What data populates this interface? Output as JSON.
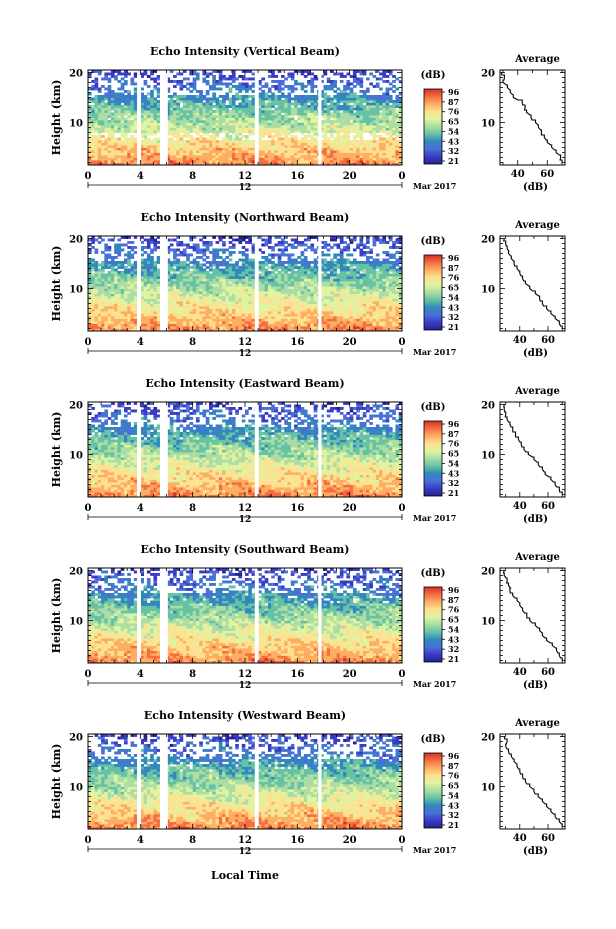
{
  "figure": {
    "xlabel": "Local Time",
    "date_label": "Mar 2017",
    "noon_label": "12"
  },
  "colorbar": {
    "unit": "(dB)",
    "ticks": [
      "96",
      "87",
      "76",
      "65",
      "54",
      "43",
      "32",
      "21"
    ],
    "colors": [
      "#d73027",
      "#f46d43",
      "#fdae61",
      "#fee090",
      "#e0f3a0",
      "#abdda4",
      "#66c2a5",
      "#3288bd",
      "#4a6fd8",
      "#3b3bc6",
      "#24248e"
    ]
  },
  "chart_data": [
    {
      "type": "heatmap",
      "title": "Echo Intensity (Vertical Beam)",
      "ylabel": "Height (km)",
      "xticks": [
        "0",
        "4",
        "8",
        "12",
        "16",
        "20",
        "0"
      ],
      "yticks": [
        "20",
        "10"
      ],
      "xlim": [
        0,
        24
      ],
      "ylim": [
        1.5,
        20.5
      ],
      "gaps_hours": [
        [
          3.75,
          4.05
        ],
        [
          5.5,
          6.1
        ],
        [
          12.75,
          13.05
        ],
        [
          17.6,
          17.85
        ]
      ],
      "profile": {
        "title": "Average",
        "xlabel": "(dB)",
        "xticks": [
          "40",
          "60"
        ],
        "yticks": [
          "20",
          "10"
        ],
        "xlim": [
          28,
          72
        ],
        "heights_km": [
          2,
          3,
          4,
          5,
          6,
          7,
          8,
          9,
          10,
          11,
          12,
          13,
          14,
          15,
          16,
          17,
          18,
          19,
          20
        ],
        "values_db": [
          70,
          69,
          66,
          63,
          60,
          58,
          56,
          54,
          52,
          49,
          46,
          45,
          43,
          37,
          35,
          33,
          30,
          31,
          29
        ]
      }
    },
    {
      "type": "heatmap",
      "title": "Echo Intensity (Northward Beam)",
      "ylabel": "Height (km)",
      "xticks": [
        "0",
        "4",
        "8",
        "12",
        "16",
        "20",
        "0"
      ],
      "yticks": [
        "20",
        "10"
      ],
      "xlim": [
        0,
        24
      ],
      "ylim": [
        1.5,
        20.5
      ],
      "gaps_hours": [
        [
          3.75,
          4.05
        ],
        [
          5.5,
          6.1
        ],
        [
          12.75,
          13.05
        ],
        [
          17.6,
          17.85
        ]
      ],
      "profile": {
        "title": "Average",
        "xlabel": "(dB)",
        "xticks": [
          "40",
          "60"
        ],
        "yticks": [
          "20",
          "10"
        ],
        "xlim": [
          26,
          72
        ],
        "heights_km": [
          2,
          3,
          4,
          5,
          6,
          7,
          8,
          9,
          10,
          11,
          12,
          13,
          14,
          15,
          16,
          17,
          18,
          19,
          20
        ],
        "values_db": [
          70,
          68,
          65,
          62,
          59,
          56,
          54,
          51,
          47,
          44,
          42,
          40,
          38,
          36,
          34,
          32,
          31,
          30,
          29
        ]
      }
    },
    {
      "type": "heatmap",
      "title": "Echo Intensity (Eastward Beam)",
      "ylabel": "Height (km)",
      "xticks": [
        "0",
        "4",
        "8",
        "12",
        "16",
        "20",
        "0"
      ],
      "yticks": [
        "20",
        "10"
      ],
      "xlim": [
        0,
        24
      ],
      "ylim": [
        1.5,
        20.5
      ],
      "gaps_hours": [
        [
          3.75,
          4.05
        ],
        [
          5.5,
          6.1
        ],
        [
          12.75,
          13.05
        ],
        [
          17.6,
          17.85
        ]
      ],
      "profile": {
        "title": "Average",
        "xlabel": "(dB)",
        "xticks": [
          "40",
          "60"
        ],
        "yticks": [
          "20",
          "10"
        ],
        "xlim": [
          26,
          72
        ],
        "heights_km": [
          2,
          3,
          4,
          5,
          6,
          7,
          8,
          9,
          10,
          11,
          12,
          13,
          14,
          15,
          16,
          17,
          18,
          19,
          20
        ],
        "values_db": [
          70,
          68,
          65,
          62,
          58,
          56,
          53,
          50,
          46,
          43,
          41,
          39,
          37,
          35,
          33,
          31,
          30,
          29,
          29
        ]
      }
    },
    {
      "type": "heatmap",
      "title": "Echo Intensity (Southward Beam)",
      "ylabel": "Height (km)",
      "xticks": [
        "0",
        "4",
        "8",
        "12",
        "16",
        "20",
        "0"
      ],
      "yticks": [
        "20",
        "10"
      ],
      "xlim": [
        0,
        24
      ],
      "ylim": [
        1.5,
        20.5
      ],
      "gaps_hours": [
        [
          3.75,
          4.05
        ],
        [
          5.5,
          6.1
        ],
        [
          12.75,
          13.05
        ],
        [
          17.6,
          17.85
        ]
      ],
      "profile": {
        "title": "Average",
        "xlabel": "(dB)",
        "xticks": [
          "40",
          "60"
        ],
        "yticks": [
          "20",
          "10"
        ],
        "xlim": [
          26,
          72
        ],
        "heights_km": [
          2,
          3,
          4,
          5,
          6,
          7,
          8,
          9,
          10,
          11,
          12,
          13,
          14,
          15,
          16,
          17,
          18,
          19,
          20
        ],
        "values_db": [
          70,
          68,
          66,
          63,
          59,
          56,
          54,
          51,
          47,
          45,
          42,
          40,
          38,
          35,
          33,
          32,
          31,
          29,
          29
        ]
      }
    },
    {
      "type": "heatmap",
      "title": "Echo Intensity (Westward Beam)",
      "ylabel": "Height (km)",
      "xticks": [
        "0",
        "4",
        "8",
        "12",
        "16",
        "20",
        "0"
      ],
      "yticks": [
        "20",
        "10"
      ],
      "xlim": [
        0,
        24
      ],
      "ylim": [
        1.5,
        20.5
      ],
      "gaps_hours": [
        [
          3.75,
          4.05
        ],
        [
          5.5,
          6.1
        ],
        [
          12.75,
          13.05
        ],
        [
          17.6,
          17.85
        ]
      ],
      "profile": {
        "title": "Average",
        "xlabel": "(dB)",
        "xticks": [
          "40",
          "60"
        ],
        "yticks": [
          "20",
          "10"
        ],
        "xlim": [
          26,
          72
        ],
        "heights_km": [
          2,
          3,
          4,
          5,
          6,
          7,
          8,
          9,
          10,
          11,
          12,
          13,
          14,
          15,
          16,
          17,
          18,
          19,
          20
        ],
        "values_db": [
          70,
          68,
          65,
          62,
          59,
          56,
          53,
          50,
          47,
          44,
          42,
          40,
          38,
          36,
          34,
          32,
          30,
          31,
          29
        ]
      }
    }
  ]
}
